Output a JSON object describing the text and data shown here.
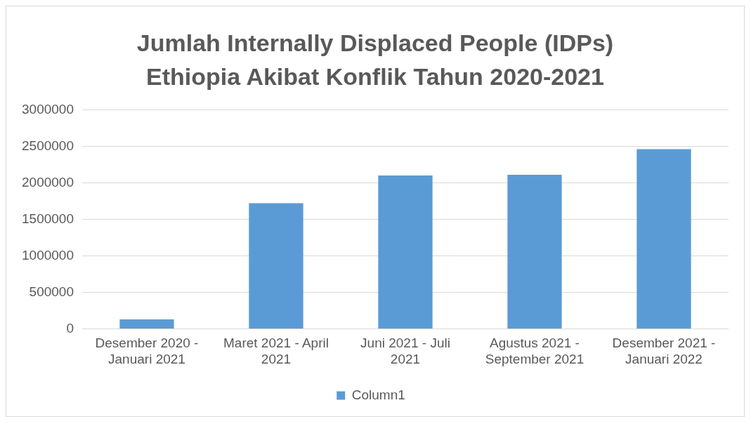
{
  "chart_data": {
    "type": "bar",
    "title": "Jumlah Internally Displaced People (IDPs) Ethiopia Akibat Konflik Tahun 2020-2021",
    "categories": [
      "Desember 2020 - Januari 2021",
      "Maret 2021 - April 2021",
      "Juni 2021 - Juli 2021",
      "Agustus 2021 - September 2021",
      "Desember 2021 - Januari 2022"
    ],
    "series": [
      {
        "name": "Column1",
        "color": "#5b9bd5",
        "values": [
          130000,
          1720000,
          2100000,
          2110000,
          2460000
        ]
      }
    ],
    "ylim": [
      0,
      3000000
    ],
    "yticks": [
      0,
      500000,
      1000000,
      1500000,
      2000000,
      2500000,
      3000000
    ],
    "grid": "y",
    "legend": "bottom"
  }
}
